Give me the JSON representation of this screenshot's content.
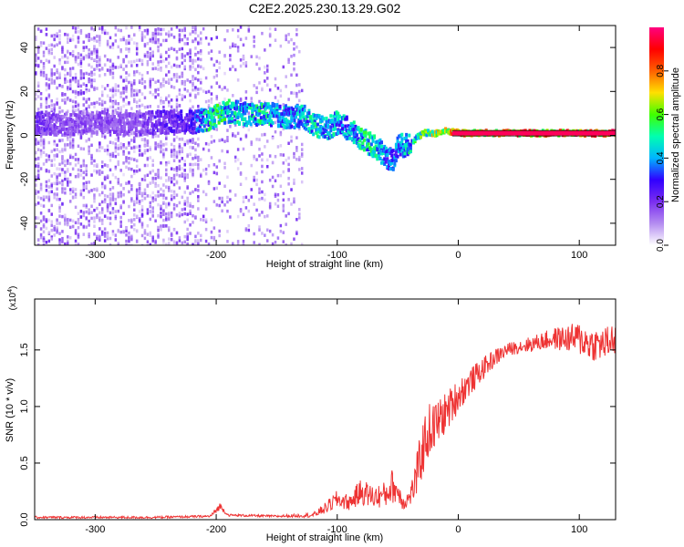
{
  "title": "C2E2.2025.230.13.29.G02",
  "chart_data": [
    {
      "type": "heatmap",
      "name": "spectrogram",
      "xlabel": "Height of straight line (km)",
      "ylabel": "Frequency (Hz)",
      "xlim": [
        -350,
        130
      ],
      "ylim": [
        -50,
        50
      ],
      "xticks": [
        -300,
        -200,
        -100,
        0,
        100
      ],
      "xtick_labels": [
        "-300",
        "-200",
        "-100",
        "0",
        "100"
      ],
      "yticks": [
        -40,
        -20,
        0,
        20,
        40
      ],
      "ytick_labels": [
        "-40",
        "-20",
        "0",
        "20",
        "40"
      ],
      "colorbar": {
        "label": "Normalized spectral amplitude",
        "range": [
          0,
          1
        ],
        "ticks": [
          0.0,
          0.2,
          0.4,
          0.6,
          0.8
        ],
        "tick_labels": [
          "0.0",
          "0.2",
          "0.4",
          "0.6",
          "0.8"
        ],
        "colors": [
          "#ffffff",
          "#b48cf0",
          "#7a2ef0",
          "#3000ff",
          "#00b4ff",
          "#00ffb0",
          "#40ff00",
          "#ffe000",
          "#ff6000",
          "#ff0000",
          "#ff0080"
        ]
      },
      "noise_region": {
        "x_from": -350,
        "x_to": -130,
        "amplitude": 0.15
      },
      "ridge": {
        "x": [
          -350,
          -330,
          -300,
          -270,
          -250,
          -220,
          -210,
          -200,
          -190,
          -180,
          -170,
          -160,
          -150,
          -140,
          -130,
          -120,
          -110,
          -100,
          -90,
          -80,
          -70,
          -60,
          -55,
          -50,
          -45,
          -40,
          -30,
          -20,
          -10,
          0,
          20,
          50,
          80,
          110,
          130
        ],
        "y": [
          6,
          5,
          6,
          5,
          6,
          6,
          7,
          9,
          11,
          10,
          9,
          10,
          9,
          8,
          9,
          5,
          3,
          6,
          2,
          -2,
          -5,
          -10,
          -11,
          -4,
          -5,
          -3,
          1,
          1,
          2,
          1,
          1,
          1,
          1,
          1,
          1
        ],
        "amplitude": [
          0.25,
          0.2,
          0.2,
          0.2,
          0.25,
          0.3,
          0.55,
          0.6,
          0.55,
          0.5,
          0.55,
          0.55,
          0.5,
          0.45,
          0.5,
          0.55,
          0.5,
          0.5,
          0.5,
          0.55,
          0.55,
          0.45,
          0.4,
          0.45,
          0.5,
          0.55,
          0.65,
          0.75,
          0.8,
          0.9,
          0.95,
          0.95,
          0.95,
          0.95,
          0.95
        ]
      }
    },
    {
      "type": "line",
      "name": "snr",
      "xlabel": "Height of straight line (km)",
      "ylabel": "SNR (10 * v/v)",
      "y_multiplier": "(x10",
      "y_multiplier_exp": "4",
      "y_multiplier_close": ")",
      "xlim": [
        -350,
        130
      ],
      "ylim": [
        0,
        1.95
      ],
      "xticks": [
        -300,
        -200,
        -100,
        0,
        100
      ],
      "xtick_labels": [
        "-300",
        "-200",
        "-100",
        "0",
        "100"
      ],
      "yticks": [
        0.0,
        0.5,
        1.0,
        1.5
      ],
      "ytick_labels": [
        "0.0",
        "0.5",
        "1.0",
        "1.5"
      ],
      "color": "#ee3333",
      "x": [
        -350,
        -300,
        -250,
        -205,
        -200,
        -197,
        -190,
        -150,
        -120,
        -110,
        -100,
        -90,
        -80,
        -70,
        -60,
        -55,
        -50,
        -45,
        -40,
        -35,
        -30,
        -25,
        -20,
        -10,
        0,
        10,
        20,
        30,
        40,
        50,
        60,
        70,
        80,
        90,
        100,
        110,
        120,
        130
      ],
      "y": [
        0.02,
        0.02,
        0.02,
        0.03,
        0.08,
        0.12,
        0.04,
        0.03,
        0.04,
        0.1,
        0.18,
        0.15,
        0.25,
        0.2,
        0.22,
        0.3,
        0.25,
        0.15,
        0.2,
        0.35,
        0.6,
        0.78,
        0.82,
        0.95,
        1.1,
        1.22,
        1.33,
        1.43,
        1.5,
        1.53,
        1.55,
        1.58,
        1.6,
        1.6,
        1.6,
        1.55,
        1.55,
        1.6
      ],
      "noise": [
        0.01,
        0.01,
        0.01,
        0.01,
        0.03,
        0.03,
        0.01,
        0.01,
        0.02,
        0.05,
        0.08,
        0.07,
        0.12,
        0.1,
        0.12,
        0.15,
        0.12,
        0.07,
        0.08,
        0.18,
        0.25,
        0.25,
        0.22,
        0.18,
        0.15,
        0.12,
        0.1,
        0.08,
        0.06,
        0.06,
        0.07,
        0.08,
        0.1,
        0.12,
        0.15,
        0.15,
        0.15,
        0.15
      ]
    }
  ]
}
